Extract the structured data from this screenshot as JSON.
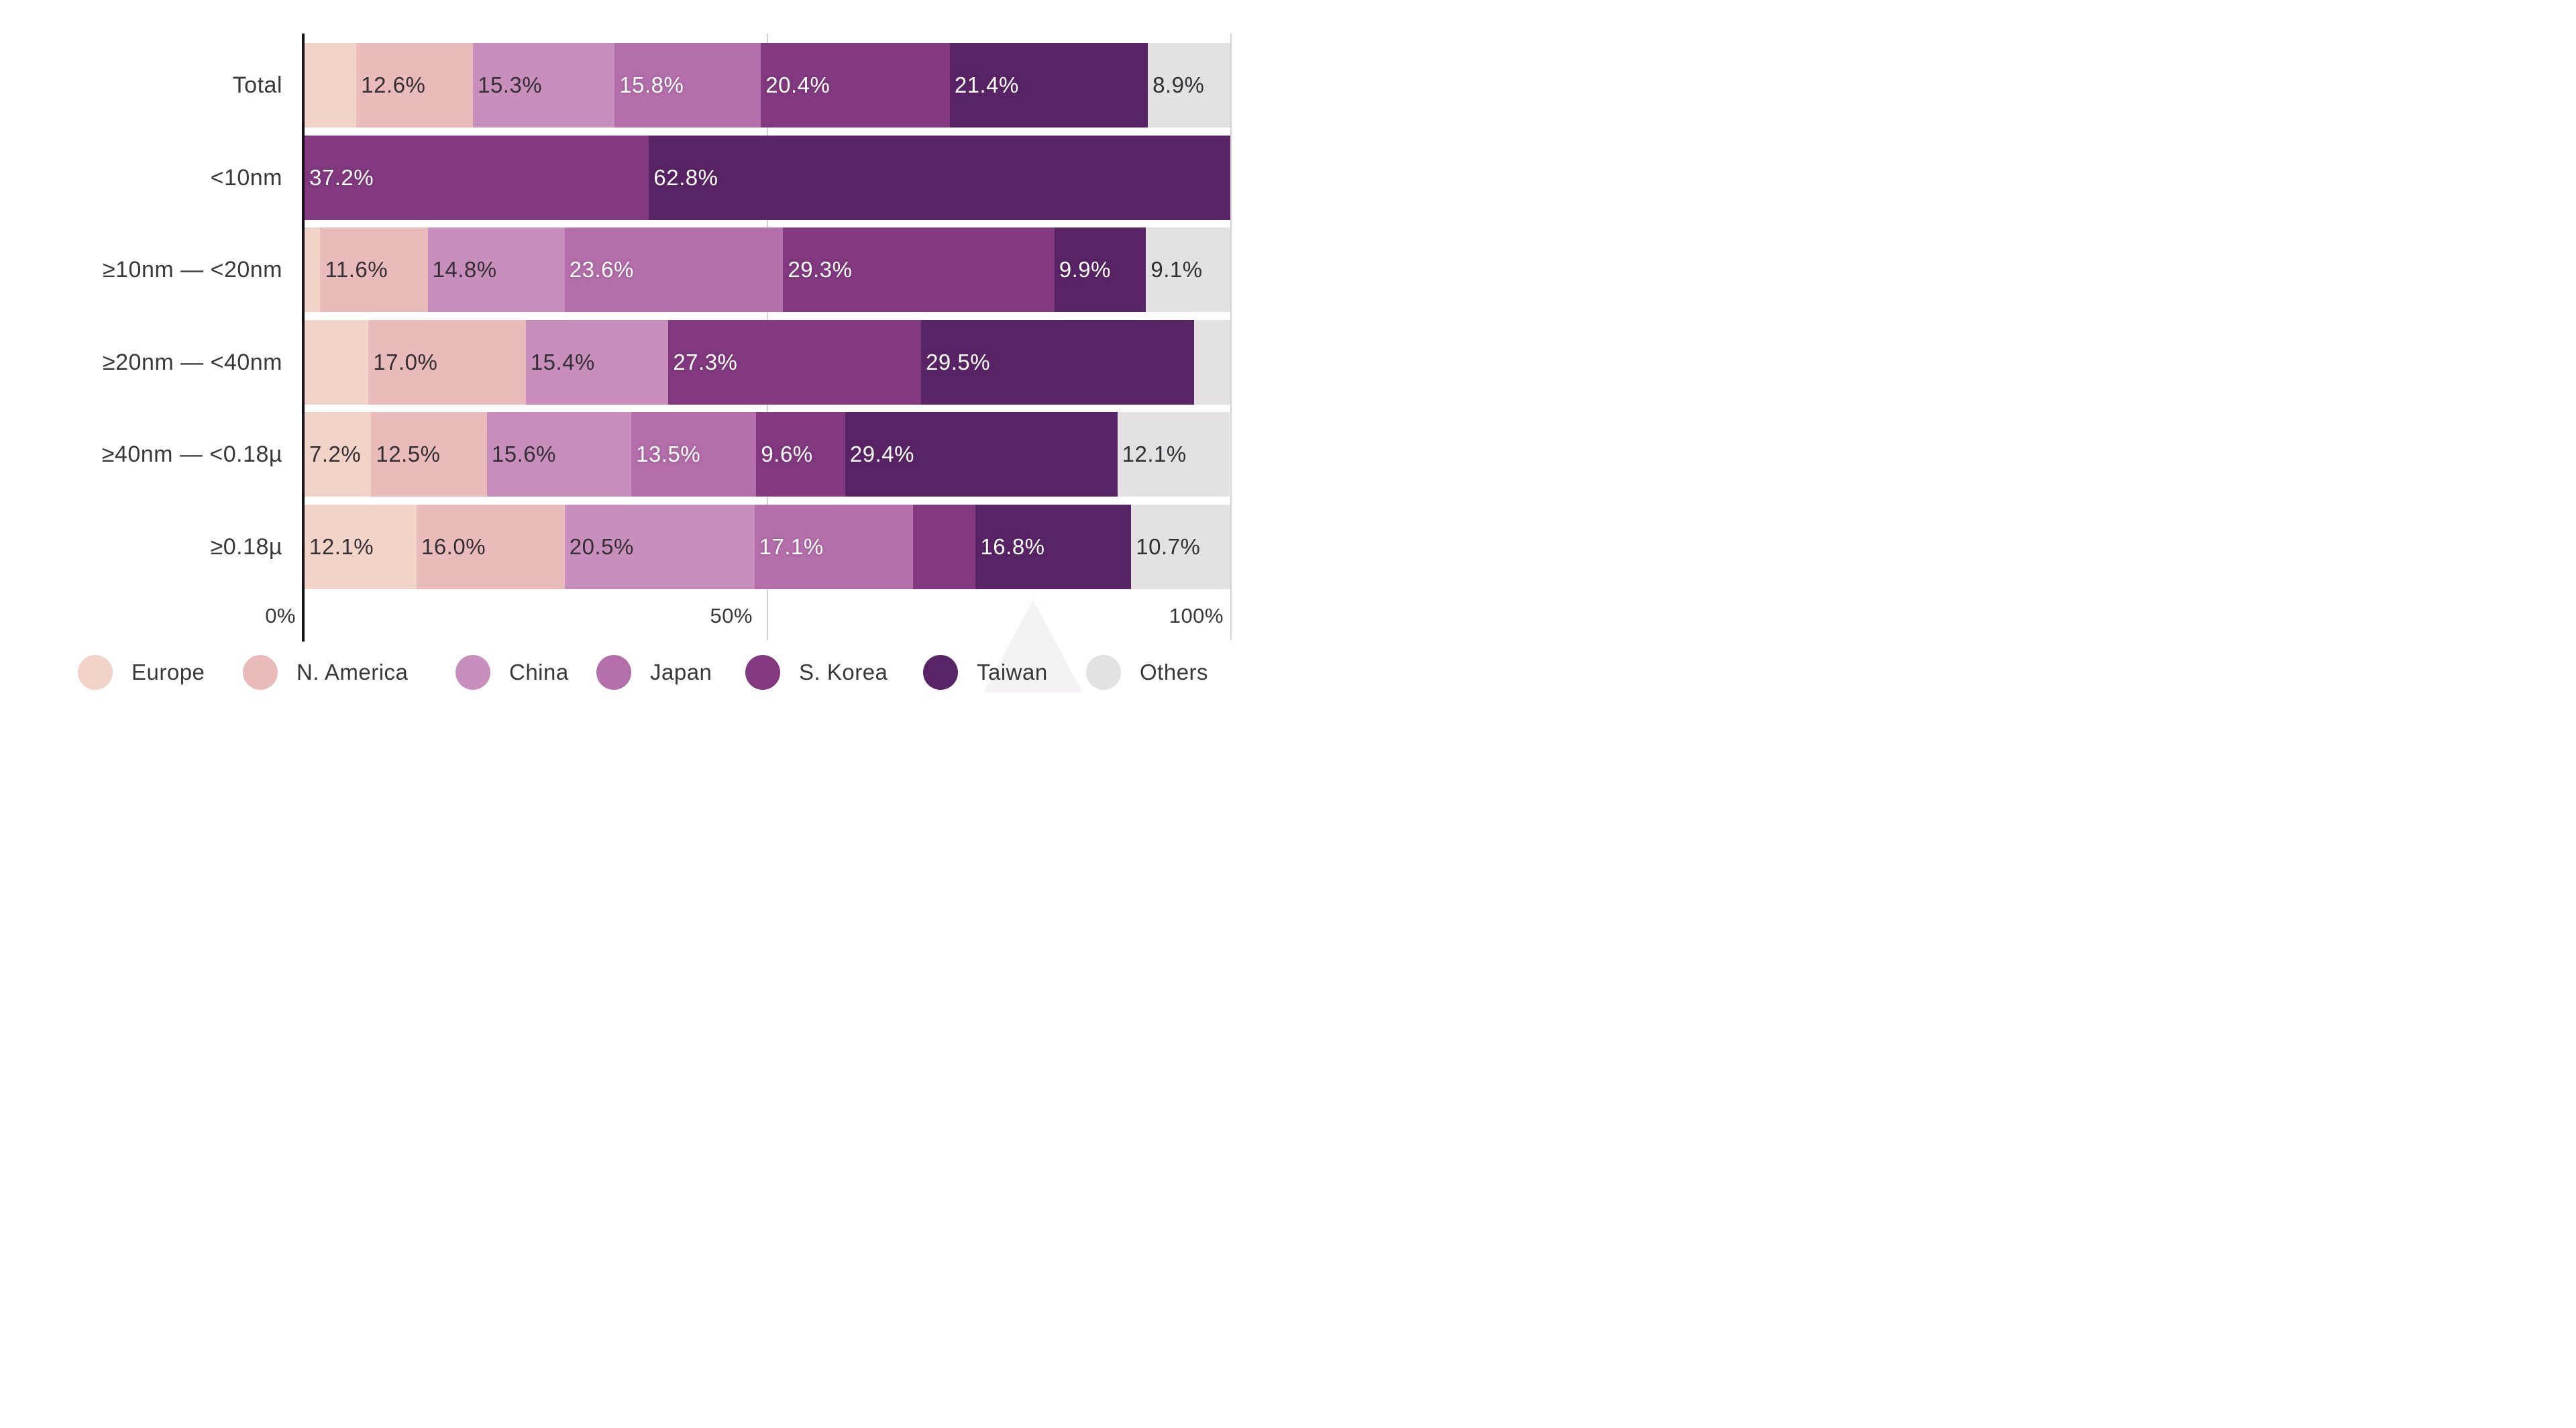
{
  "chart_data": {
    "type": "bar",
    "variant": "horizontal_stacked_100pct",
    "title": "",
    "categories": [
      "Total",
      "<10nm",
      "≥10nm — <20nm",
      "≥20nm — <40nm",
      "≥40nm — <0.18µ",
      "≥0.18µ"
    ],
    "series": [
      {
        "name": "Europe",
        "color": "#F2D3C7",
        "values": [
          5.6,
          0,
          1.7,
          6.9,
          7.2,
          12.1
        ]
      },
      {
        "name": "N. America",
        "color": "#E9BBBB",
        "values": [
          12.6,
          0,
          11.6,
          17.0,
          12.5,
          16.0
        ]
      },
      {
        "name": "China",
        "color": "#C98FBC",
        "values": [
          15.3,
          0,
          14.8,
          15.4,
          15.6,
          20.5
        ]
      },
      {
        "name": "Japan",
        "color": "#B46FAB",
        "values": [
          15.8,
          0,
          23.6,
          0,
          13.5,
          17.1
        ]
      },
      {
        "name": "S. Korea",
        "color": "#82397F",
        "values": [
          20.4,
          37.2,
          29.3,
          27.3,
          9.6,
          6.8
        ]
      },
      {
        "name": "Taiwan",
        "color": "#592465",
        "values": [
          21.4,
          62.8,
          9.9,
          29.5,
          29.4,
          16.8
        ]
      },
      {
        "name": "Others",
        "color": "#E3E1E2",
        "values": [
          8.9,
          0,
          9.1,
          3.9,
          12.1,
          10.7
        ]
      }
    ],
    "xlim": [
      0,
      100
    ],
    "x_ticks": [
      "0%",
      "50%",
      "100%"
    ],
    "grid": "x ticks at 50% and 100%",
    "legend_position": "bottom"
  },
  "axis": {
    "tick0": "0%",
    "tick50": "50%",
    "tick100": "100%"
  },
  "rows": [
    {
      "label": "Total",
      "segments": [
        {
          "region": "Europe",
          "value": 5.6,
          "label": "",
          "color": "#F2D3C7",
          "text_color": "#332F34"
        },
        {
          "region": "N. America",
          "value": 12.6,
          "label": "12.6%",
          "color": "#E9BBBB",
          "text_color": "#332F34"
        },
        {
          "region": "China",
          "value": 15.3,
          "label": "15.3%",
          "color": "#C98FBC",
          "text_color": "#332F34"
        },
        {
          "region": "Japan",
          "value": 15.8,
          "label": "15.8%",
          "color": "#B46FAB",
          "text_color": "#FFFFFF"
        },
        {
          "region": "S. Korea",
          "value": 20.4,
          "label": "20.4%",
          "color": "#82397F",
          "text_color": "#FFFFFF"
        },
        {
          "region": "Taiwan",
          "value": 21.4,
          "label": "21.4%",
          "color": "#592465",
          "text_color": "#FFFFFF"
        },
        {
          "region": "Others",
          "value": 8.9,
          "label": "8.9%",
          "color": "#E3E1E2",
          "text_color": "#332F34"
        }
      ]
    },
    {
      "label": "<10nm",
      "segments": [
        {
          "region": "S. Korea",
          "value": 37.2,
          "label": "37.2%",
          "color": "#82397F",
          "text_color": "#FFFFFF"
        },
        {
          "region": "Taiwan",
          "value": 62.8,
          "label": "62.8%",
          "color": "#592465",
          "text_color": "#FFFFFF"
        }
      ]
    },
    {
      "label": "≥10nm — <20nm",
      "segments": [
        {
          "region": "Europe",
          "value": 1.7,
          "label": "",
          "color": "#F2D3C7",
          "text_color": "#332F34"
        },
        {
          "region": "N. America",
          "value": 11.6,
          "label": "11.6%",
          "color": "#E9BBBB",
          "text_color": "#332F34"
        },
        {
          "region": "China",
          "value": 14.8,
          "label": "14.8%",
          "color": "#C98FBC",
          "text_color": "#332F34"
        },
        {
          "region": "Japan",
          "value": 23.6,
          "label": "23.6%",
          "color": "#B46FAB",
          "text_color": "#FFFFFF"
        },
        {
          "region": "S. Korea",
          "value": 29.3,
          "label": "29.3%",
          "color": "#82397F",
          "text_color": "#FFFFFF"
        },
        {
          "region": "Taiwan",
          "value": 9.9,
          "label": "9.9%",
          "color": "#592465",
          "text_color": "#FFFFFF"
        },
        {
          "region": "Others",
          "value": 9.1,
          "label": "9.1%",
          "color": "#E3E1E2",
          "text_color": "#332F34"
        }
      ]
    },
    {
      "label": "≥20nm — <40nm",
      "segments": [
        {
          "region": "Europe",
          "value": 6.9,
          "label": "",
          "color": "#F2D3C7",
          "text_color": "#332F34"
        },
        {
          "region": "N. America",
          "value": 17.0,
          "label": "17.0%",
          "color": "#E9BBBB",
          "text_color": "#332F34"
        },
        {
          "region": "China",
          "value": 15.4,
          "label": "15.4%",
          "color": "#C98FBC",
          "text_color": "#332F34"
        },
        {
          "region": "S. Korea",
          "value": 27.3,
          "label": "27.3%",
          "color": "#82397F",
          "text_color": "#FFFFFF"
        },
        {
          "region": "Taiwan",
          "value": 29.5,
          "label": "29.5%",
          "color": "#592465",
          "text_color": "#FFFFFF"
        },
        {
          "region": "Others",
          "value": 3.9,
          "label": "",
          "color": "#E3E1E2",
          "text_color": "#332F34"
        }
      ]
    },
    {
      "label": "≥40nm — <0.18µ",
      "segments": [
        {
          "region": "Europe",
          "value": 7.2,
          "label": "7.2%",
          "color": "#F2D3C7",
          "text_color": "#332F34"
        },
        {
          "region": "N. America",
          "value": 12.5,
          "label": "12.5%",
          "color": "#E9BBBB",
          "text_color": "#332F34"
        },
        {
          "region": "China",
          "value": 15.6,
          "label": "15.6%",
          "color": "#C98FBC",
          "text_color": "#332F34"
        },
        {
          "region": "Japan",
          "value": 13.5,
          "label": "13.5%",
          "color": "#B46FAB",
          "text_color": "#FFFFFF"
        },
        {
          "region": "S. Korea",
          "value": 9.6,
          "label": "9.6%",
          "color": "#82397F",
          "text_color": "#FFFFFF"
        },
        {
          "region": "Taiwan",
          "value": 29.4,
          "label": "29.4%",
          "color": "#592465",
          "text_color": "#FFFFFF"
        },
        {
          "region": "Others",
          "value": 12.1,
          "label": "12.1%",
          "color": "#E3E1E2",
          "text_color": "#332F34"
        }
      ]
    },
    {
      "label": "≥0.18µ",
      "segments": [
        {
          "region": "Europe",
          "value": 12.1,
          "label": "12.1%",
          "color": "#F2D3C7",
          "text_color": "#332F34"
        },
        {
          "region": "N. America",
          "value": 16.0,
          "label": "16.0%",
          "color": "#E9BBBB",
          "text_color": "#332F34"
        },
        {
          "region": "China",
          "value": 20.5,
          "label": "20.5%",
          "color": "#C98FBC",
          "text_color": "#332F34"
        },
        {
          "region": "Japan",
          "value": 17.1,
          "label": "17.1%",
          "color": "#B46FAB",
          "text_color": "#FFFFFF"
        },
        {
          "region": "S. Korea",
          "value": 6.8,
          "label": "",
          "color": "#82397F",
          "text_color": "#FFFFFF"
        },
        {
          "region": "Taiwan",
          "value": 16.8,
          "label": "16.8%",
          "color": "#592465",
          "text_color": "#FFFFFF"
        },
        {
          "region": "Others",
          "value": 10.7,
          "label": "10.7%",
          "color": "#E3E1E2",
          "text_color": "#332F34"
        }
      ]
    }
  ],
  "legend": {
    "items": [
      {
        "name": "Europe",
        "color": "#F2D3C7"
      },
      {
        "name": "N. America",
        "color": "#E9BBBB"
      },
      {
        "name": "China",
        "color": "#C98FBC"
      },
      {
        "name": "Japan",
        "color": "#B46FAB"
      },
      {
        "name": "S. Korea",
        "color": "#82397F"
      },
      {
        "name": "Taiwan",
        "color": "#592465"
      },
      {
        "name": "Others",
        "color": "#E3E1E2"
      }
    ]
  }
}
